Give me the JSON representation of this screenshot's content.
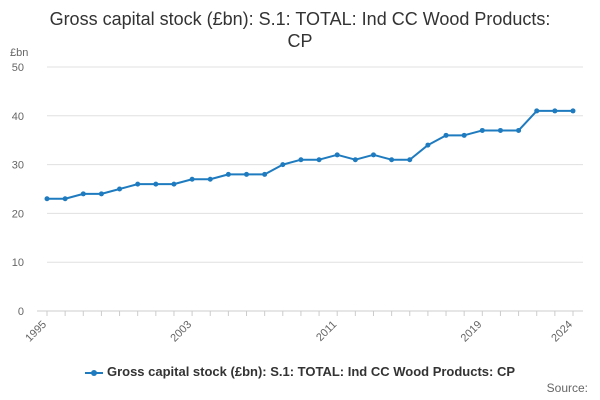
{
  "chart_data": {
    "type": "line",
    "title": "Gross capital stock (£bn): S.1: TOTAL: Ind CC Wood Products: CP",
    "unit_label": "£bn",
    "x": [
      1995,
      1996,
      1997,
      1998,
      1999,
      2000,
      2001,
      2002,
      2003,
      2004,
      2005,
      2006,
      2007,
      2008,
      2009,
      2010,
      2011,
      2012,
      2013,
      2014,
      2015,
      2016,
      2017,
      2018,
      2019,
      2020,
      2021,
      2022,
      2023,
      2024
    ],
    "x_tick_labels": [
      "1995",
      "2003",
      "2011",
      "2019",
      "2024"
    ],
    "y_ticks": [
      0,
      10,
      20,
      30,
      40,
      50
    ],
    "ylim": [
      0,
      50
    ],
    "grid": true,
    "legend_position": "bottom",
    "series": [
      {
        "name": "Gross capital stock (£bn): S.1: TOTAL: Ind CC Wood Products: CP",
        "values": [
          23,
          23,
          24,
          24,
          25,
          26,
          26,
          26,
          27,
          27,
          28,
          28,
          28,
          30,
          31,
          31,
          32,
          31,
          32,
          31,
          31,
          34,
          36,
          36,
          37,
          37,
          37,
          41,
          41,
          41
        ]
      }
    ],
    "source_label": "Source:"
  },
  "colors": {
    "series": "#1f7bbf",
    "grid": "#e0e0e0",
    "axis": "#cccccc"
  }
}
